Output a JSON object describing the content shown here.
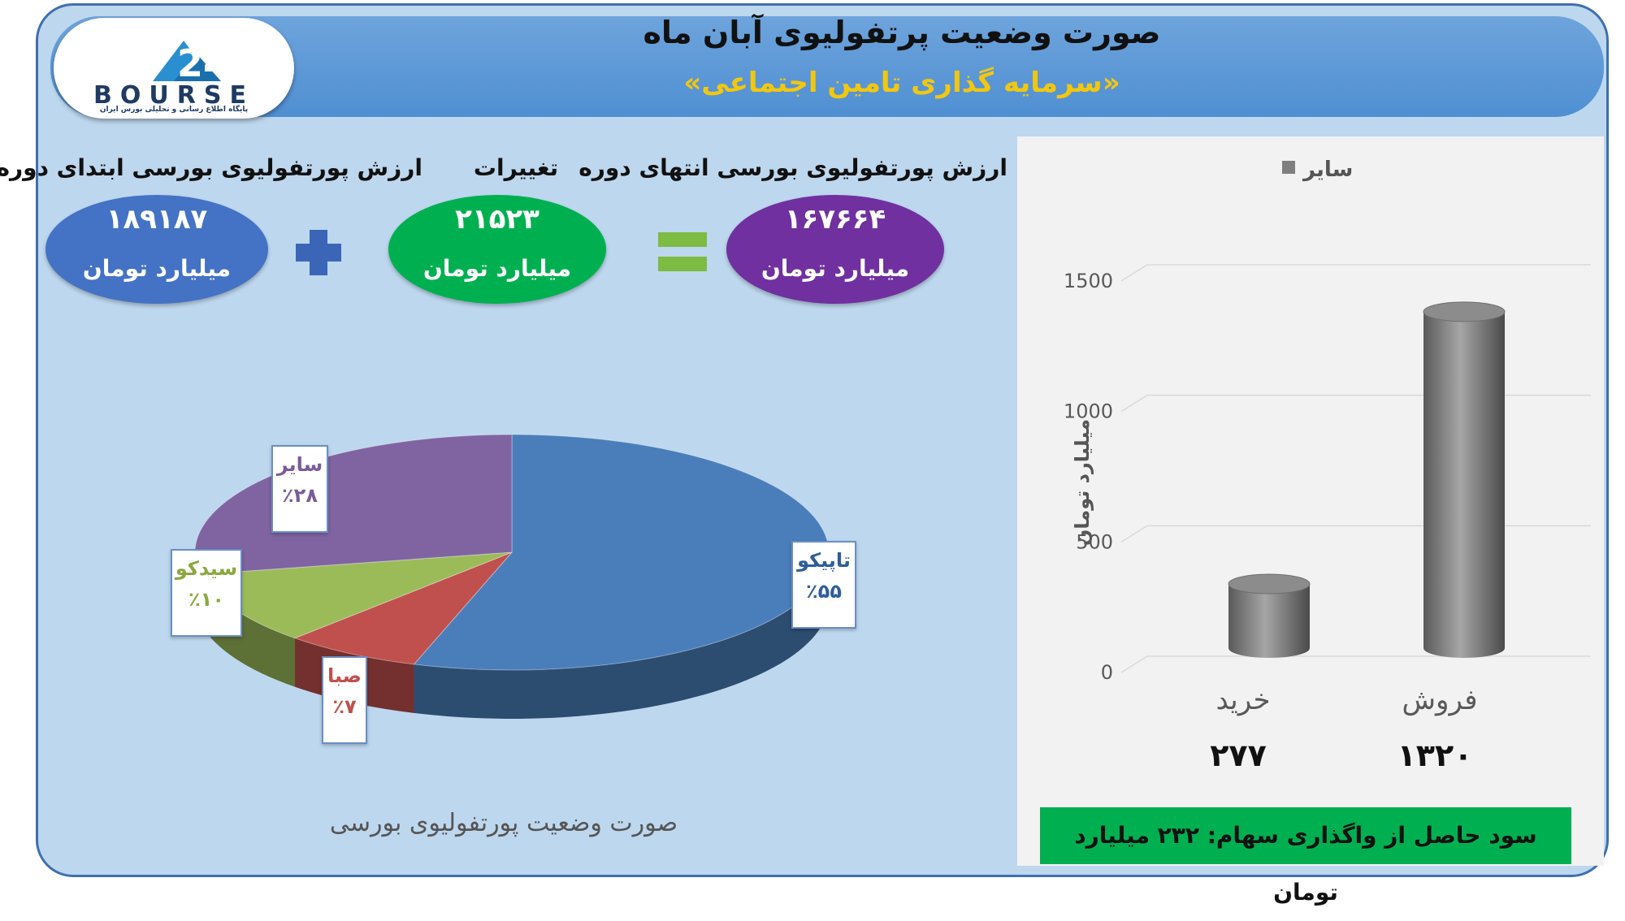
{
  "header": {
    "title": "صورت وضعیت پرتفولیوی آبان ماه",
    "subtitle": "«سرمایه گذاری تامین اجتماعی»"
  },
  "logo": {
    "text": "BOURSE",
    "subtext": "پایگاه اطلاع رسانی و تحلیلی بورس ایران"
  },
  "summary": {
    "start_label": "ارزش پورتفولیوی بورسی ابتدای دوره",
    "start_value": "۱۸۹۱۸۷",
    "change_label": "تغییرات",
    "change_value": "۲۱۵۲۳",
    "end_label": "ارزش پورتفولیوی بورسی انتهای دوره",
    "end_value": "۱۶۷۶۶۴",
    "unit": "میلیارد تومان",
    "colors": {
      "start": "#4472c4",
      "change": "#00b050",
      "end": "#7030a0"
    }
  },
  "pie_caption": "صورت وضعیت پورتفولیوی بورسی",
  "bar_axis_label": "میلیارد تومان",
  "bar_values_text": [
    "۲۷۷",
    "۱۳۲۰"
  ],
  "profit_text": "سود حاصل از واگذاری سهام: ۲۳۲ میلیارد تومان",
  "chart_data": [
    {
      "type": "pie",
      "slices": [
        {
          "label": "تاپیکو",
          "percent_label": "٪۵۵",
          "value": 55,
          "color": "#4a7ebb"
        },
        {
          "label": "صبا",
          "percent_label": "٪۷",
          "value": 7,
          "color": "#c0504d"
        },
        {
          "label": "سیدکو",
          "percent_label": "٪۱۰",
          "value": 10,
          "color": "#9bbb59"
        },
        {
          "label": "سایر",
          "percent_label": "٪۲۸",
          "value": 28,
          "color": "#8064a2"
        }
      ],
      "label_colors": [
        "#2e5d9a",
        "#c0504d",
        "#8aa83e",
        "#7a5c99"
      ]
    },
    {
      "type": "bar",
      "categories": [
        "خرید",
        "فروش"
      ],
      "values": [
        277,
        1320
      ],
      "legend": [
        "سایر"
      ],
      "ylabel": "میلیارد تومان",
      "ylim": [
        0,
        1500
      ],
      "yticks": [
        0,
        500,
        1000,
        1500
      ],
      "grid": true,
      "color": "#7f7f7f"
    }
  ]
}
